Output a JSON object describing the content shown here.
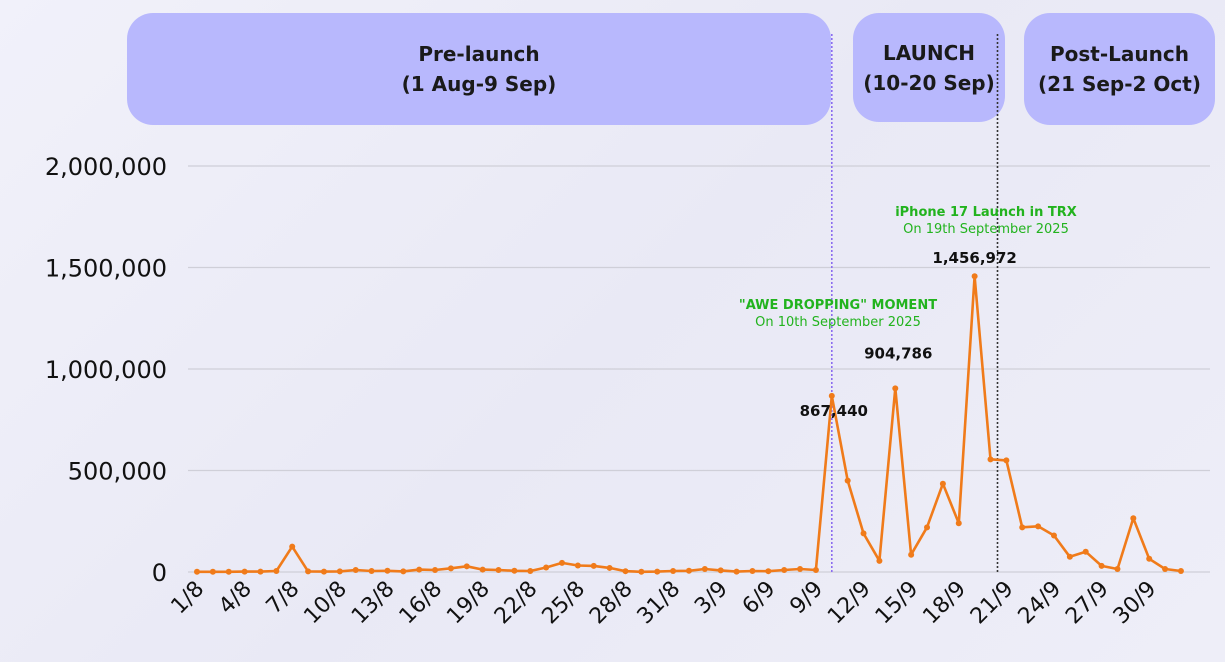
{
  "phases": [
    {
      "title": "Pre-launch",
      "subtitle": "(1 Aug-9 Sep)",
      "color": "#b8b8fd"
    },
    {
      "title": "LAUNCH",
      "subtitle": "(10-20 Sep)",
      "color": "#b8b8fd"
    },
    {
      "title": "Post-Launch",
      "subtitle": "(21 Sep-2 Oct)",
      "color": "#b8b8fd"
    }
  ],
  "chart_data": {
    "type": "line",
    "title": "",
    "xlabel": "",
    "ylabel": "",
    "ylim": [
      0,
      2000000
    ],
    "yticks": [
      0,
      500000,
      1000000,
      1500000,
      2000000
    ],
    "ytick_labels": [
      "0",
      "500,000",
      "1,000,000",
      "1,500,000",
      "2,000,000"
    ],
    "grid": "horizontal",
    "line_color": "#f07b1a",
    "x": [
      "1/8",
      "2/8",
      "3/8",
      "4/8",
      "5/8",
      "6/8",
      "7/8",
      "8/8",
      "9/8",
      "10/8",
      "11/8",
      "12/8",
      "13/8",
      "14/8",
      "15/8",
      "16/8",
      "17/8",
      "18/8",
      "19/8",
      "20/8",
      "21/8",
      "22/8",
      "23/8",
      "24/8",
      "25/8",
      "26/8",
      "27/8",
      "28/8",
      "29/8",
      "30/8",
      "31/8",
      "1/9",
      "2/9",
      "3/9",
      "4/9",
      "5/9",
      "6/9",
      "7/9",
      "8/9",
      "9/9",
      "10/9",
      "11/9",
      "12/9",
      "13/9",
      "14/9",
      "15/9",
      "16/9",
      "17/9",
      "18/9",
      "19/9",
      "20/9",
      "21/9",
      "22/9",
      "23/9",
      "24/9",
      "25/9",
      "26/9",
      "27/9",
      "28/9",
      "29/9",
      "30/9",
      "1/10",
      "2/10"
    ],
    "x_tick_labels": [
      "1/8",
      "4/8",
      "7/8",
      "10/8",
      "13/8",
      "16/8",
      "19/8",
      "22/8",
      "25/8",
      "28/8",
      "31/8",
      "3/9",
      "6/9",
      "9/9",
      "12/9",
      "15/9",
      "18/9",
      "21/9",
      "24/9",
      "27/9",
      "30/9"
    ],
    "values": [
      1000,
      1000,
      1000,
      2000,
      2000,
      5000,
      125000,
      3000,
      2000,
      3000,
      10000,
      5000,
      6000,
      3000,
      12000,
      10000,
      18000,
      28000,
      12000,
      10000,
      6000,
      5000,
      22000,
      45000,
      32000,
      30000,
      20000,
      4000,
      1000,
      2000,
      5000,
      6000,
      15000,
      8000,
      2000,
      5000,
      4000,
      10000,
      15000,
      10000,
      867440,
      450000,
      190000,
      55000,
      904786,
      85000,
      220000,
      435000,
      240000,
      1456972,
      555000,
      550000,
      220000,
      225000,
      180000,
      75000,
      100000,
      30000,
      15000,
      265000,
      65000,
      15000,
      5000
    ],
    "data_labels": [
      {
        "x": "10/9",
        "text": "867,440"
      },
      {
        "x": "14/9",
        "text": "904,786"
      },
      {
        "x": "19/9",
        "text": "1,456,972"
      }
    ],
    "annotations": [
      {
        "x": "10/9",
        "title": "\"AWE DROPPING\" MOMENT",
        "subtitle": "On 10th September 2025",
        "color": "#22b31e"
      },
      {
        "x": "19/9",
        "title": "iPhone 17 Launch in TRX",
        "subtitle": "On 19th September 2025",
        "color": "#22b31e"
      }
    ],
    "vlines": [
      {
        "x": "10/9",
        "style": "dotted",
        "color": "#8b6cf0"
      },
      {
        "x": "20/9",
        "style": "dotted",
        "color": "#333333"
      }
    ]
  }
}
